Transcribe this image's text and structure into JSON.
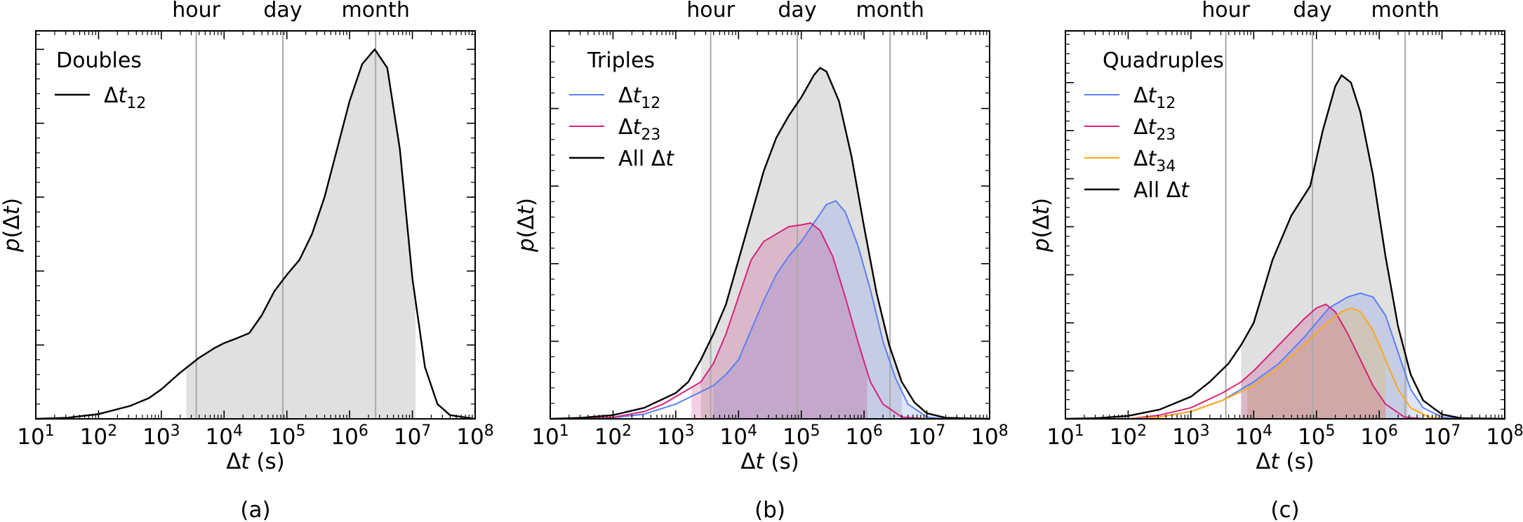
{
  "chart_data": [
    {
      "type": "area",
      "panel_label": "(a)",
      "legend_title": "Doubles",
      "xlabel": "Δt (s)",
      "ylabel": "p(Δt)",
      "x_scale": "log",
      "xlim_log10": [
        1,
        8
      ],
      "ylim": [
        0,
        1.05
      ],
      "x_ticks": [
        {
          "base": "10",
          "exp": "1"
        },
        {
          "base": "10",
          "exp": "2"
        },
        {
          "base": "10",
          "exp": "3"
        },
        {
          "base": "10",
          "exp": "4"
        },
        {
          "base": "10",
          "exp": "5"
        },
        {
          "base": "10",
          "exp": "6"
        },
        {
          "base": "10",
          "exp": "7"
        },
        {
          "base": "10",
          "exp": "8"
        }
      ],
      "y_major_ticks": [
        0.2,
        0.4,
        0.6,
        0.8,
        1.0
      ],
      "y_minor_step": 0.04,
      "markers": [
        {
          "label": "hour",
          "log10": 3.556
        },
        {
          "label": "day",
          "log10": 4.936
        },
        {
          "label": "month",
          "log10": 6.414
        }
      ],
      "shade_range_log10": [
        3.4,
        7.05
      ],
      "series": [
        {
          "name": "Δt12",
          "sym": "Δ",
          "var": "t",
          "sub": "12",
          "color": "#000000",
          "is_all": true,
          "points": [
            [
              1.0,
              0
            ],
            [
              1.5,
              0.003
            ],
            [
              2.0,
              0.013
            ],
            [
              2.5,
              0.035
            ],
            [
              2.8,
              0.056
            ],
            [
              3.0,
              0.08
            ],
            [
              3.3,
              0.125
            ],
            [
              3.6,
              0.165
            ],
            [
              3.85,
              0.192
            ],
            [
              4.0,
              0.205
            ],
            [
              4.2,
              0.218
            ],
            [
              4.4,
              0.232
            ],
            [
              4.6,
              0.28
            ],
            [
              4.8,
              0.345
            ],
            [
              5.0,
              0.39
            ],
            [
              5.2,
              0.43
            ],
            [
              5.4,
              0.5
            ],
            [
              5.6,
              0.6
            ],
            [
              5.8,
              0.73
            ],
            [
              6.0,
              0.86
            ],
            [
              6.2,
              0.96
            ],
            [
              6.4,
              1.0
            ],
            [
              6.6,
              0.95
            ],
            [
              6.8,
              0.73
            ],
            [
              7.0,
              0.38
            ],
            [
              7.2,
              0.14
            ],
            [
              7.4,
              0.04
            ],
            [
              7.6,
              0.01
            ],
            [
              8.0,
              0
            ]
          ]
        }
      ]
    },
    {
      "type": "area",
      "panel_label": "(b)",
      "legend_title": "Triples",
      "xlabel": "Δt (s)",
      "ylabel": "p(Δt)",
      "x_scale": "log",
      "xlim_log10": [
        1,
        8
      ],
      "ylim": [
        0,
        1.05
      ],
      "x_ticks": [
        {
          "base": "10",
          "exp": "1"
        },
        {
          "base": "10",
          "exp": "2"
        },
        {
          "base": "10",
          "exp": "3"
        },
        {
          "base": "10",
          "exp": "4"
        },
        {
          "base": "10",
          "exp": "5"
        },
        {
          "base": "10",
          "exp": "6"
        },
        {
          "base": "10",
          "exp": "7"
        },
        {
          "base": "10",
          "exp": "8"
        }
      ],
      "y_major_ticks": [
        0.21,
        0.42,
        0.63,
        0.84
      ],
      "y_minor_step": 0.042,
      "markers": [
        {
          "label": "hour",
          "log10": 3.556
        },
        {
          "label": "day",
          "log10": 4.936
        },
        {
          "label": "month",
          "log10": 6.414
        }
      ],
      "series": [
        {
          "name": "Δt12",
          "sym": "Δ",
          "var": "t",
          "sub": "12",
          "color": "#5b7ff5",
          "fill": "#5b7ff5",
          "fill_opacity": 0.2,
          "shade_range_log10": [
            3.6,
            6.9
          ],
          "points": [
            [
              1.5,
              0
            ],
            [
              2.0,
              0.003
            ],
            [
              2.5,
              0.013
            ],
            [
              3.0,
              0.04
            ],
            [
              3.3,
              0.065
            ],
            [
              3.6,
              0.09
            ],
            [
              3.8,
              0.12
            ],
            [
              4.0,
              0.16
            ],
            [
              4.2,
              0.24
            ],
            [
              4.4,
              0.32
            ],
            [
              4.6,
              0.39
            ],
            [
              4.8,
              0.44
            ],
            [
              5.0,
              0.48
            ],
            [
              5.2,
              0.53
            ],
            [
              5.4,
              0.58
            ],
            [
              5.55,
              0.59
            ],
            [
              5.7,
              0.56
            ],
            [
              5.9,
              0.47
            ],
            [
              6.1,
              0.35
            ],
            [
              6.3,
              0.21
            ],
            [
              6.5,
              0.11
            ],
            [
              6.7,
              0.04
            ],
            [
              7.0,
              0.005
            ],
            [
              7.3,
              0
            ]
          ]
        },
        {
          "name": "Δt23",
          "sym": "Δ",
          "var": "t",
          "sub": "23",
          "color": "#d6247a",
          "fill": "#c2186f",
          "fill_opacity": 0.2,
          "shade_range_log10": [
            3.25,
            6.05
          ],
          "points": [
            [
              1.5,
              0
            ],
            [
              2.0,
              0.004
            ],
            [
              2.5,
              0.02
            ],
            [
              2.8,
              0.04
            ],
            [
              3.0,
              0.06
            ],
            [
              3.2,
              0.08
            ],
            [
              3.4,
              0.1
            ],
            [
              3.6,
              0.15
            ],
            [
              3.8,
              0.23
            ],
            [
              4.0,
              0.33
            ],
            [
              4.2,
              0.43
            ],
            [
              4.4,
              0.48
            ],
            [
              4.6,
              0.5
            ],
            [
              4.8,
              0.52
            ],
            [
              5.0,
              0.525
            ],
            [
              5.15,
              0.53
            ],
            [
              5.3,
              0.51
            ],
            [
              5.5,
              0.44
            ],
            [
              5.7,
              0.33
            ],
            [
              5.9,
              0.21
            ],
            [
              6.1,
              0.1
            ],
            [
              6.3,
              0.04
            ],
            [
              6.6,
              0.005
            ],
            [
              7.0,
              0
            ]
          ]
        },
        {
          "name": "All Δt",
          "prefix": "All ",
          "sym": "Δ",
          "var": "t",
          "sub": "",
          "color": "#000000",
          "is_all": true,
          "shade_range_log10": [
            3.4,
            6.6
          ],
          "points": [
            [
              1.0,
              0
            ],
            [
              1.5,
              0.003
            ],
            [
              2.0,
              0.01
            ],
            [
              2.5,
              0.03
            ],
            [
              3.0,
              0.07
            ],
            [
              3.2,
              0.1
            ],
            [
              3.4,
              0.16
            ],
            [
              3.6,
              0.23
            ],
            [
              3.8,
              0.31
            ],
            [
              4.0,
              0.43
            ],
            [
              4.2,
              0.55
            ],
            [
              4.4,
              0.67
            ],
            [
              4.6,
              0.76
            ],
            [
              4.8,
              0.82
            ],
            [
              5.0,
              0.87
            ],
            [
              5.2,
              0.93
            ],
            [
              5.3,
              0.95
            ],
            [
              5.4,
              0.94
            ],
            [
              5.6,
              0.86
            ],
            [
              5.8,
              0.71
            ],
            [
              6.0,
              0.52
            ],
            [
              6.2,
              0.34
            ],
            [
              6.4,
              0.2
            ],
            [
              6.6,
              0.1
            ],
            [
              6.8,
              0.045
            ],
            [
              7.0,
              0.015
            ],
            [
              7.3,
              0.003
            ],
            [
              8.0,
              0
            ]
          ]
        }
      ]
    },
    {
      "type": "area",
      "panel_label": "(c)",
      "legend_title": "Quadruples",
      "xlabel": "Δt (s)",
      "ylabel": "p(Δt)",
      "x_scale": "log",
      "xlim_log10": [
        1,
        8
      ],
      "ylim": [
        0,
        1.05
      ],
      "x_ticks": [
        {
          "base": "10",
          "exp": "1"
        },
        {
          "base": "10",
          "exp": "2"
        },
        {
          "base": "10",
          "exp": "3"
        },
        {
          "base": "10",
          "exp": "4"
        },
        {
          "base": "10",
          "exp": "5"
        },
        {
          "base": "10",
          "exp": "6"
        },
        {
          "base": "10",
          "exp": "7"
        },
        {
          "base": "10",
          "exp": "8"
        }
      ],
      "y_major_ticks": [
        0.13,
        0.26,
        0.39,
        0.52,
        0.65,
        0.78,
        0.91
      ],
      "y_minor_step": 0.026,
      "markers": [
        {
          "label": "hour",
          "log10": 3.556
        },
        {
          "label": "day",
          "log10": 4.936
        },
        {
          "label": "month",
          "log10": 6.414
        }
      ],
      "series": [
        {
          "name": "Δt12",
          "sym": "Δ",
          "var": "t",
          "sub": "12",
          "color": "#5b7ff5",
          "fill": "#5b7ff5",
          "fill_opacity": 0.2,
          "shade_range_log10": [
            3.9,
            6.7
          ],
          "points": [
            [
              2.0,
              0
            ],
            [
              2.5,
              0.005
            ],
            [
              3.0,
              0.02
            ],
            [
              3.5,
              0.05
            ],
            [
              4.0,
              0.1
            ],
            [
              4.4,
              0.15
            ],
            [
              4.8,
              0.22
            ],
            [
              5.2,
              0.3
            ],
            [
              5.5,
              0.33
            ],
            [
              5.7,
              0.34
            ],
            [
              5.9,
              0.33
            ],
            [
              6.1,
              0.28
            ],
            [
              6.3,
              0.18
            ],
            [
              6.5,
              0.08
            ],
            [
              6.7,
              0.03
            ],
            [
              7.0,
              0.005
            ],
            [
              7.3,
              0
            ]
          ]
        },
        {
          "name": "Δt23",
          "sym": "Δ",
          "var": "t",
          "sub": "23",
          "color": "#d6247a",
          "fill": "#c2186f",
          "fill_opacity": 0.2,
          "shade_range_log10": [
            3.8,
            6.1
          ],
          "points": [
            [
              2.0,
              0
            ],
            [
              2.5,
              0.01
            ],
            [
              3.0,
              0.03
            ],
            [
              3.5,
              0.07
            ],
            [
              3.8,
              0.1
            ],
            [
              4.0,
              0.13
            ],
            [
              4.4,
              0.2
            ],
            [
              4.8,
              0.27
            ],
            [
              5.0,
              0.3
            ],
            [
              5.15,
              0.31
            ],
            [
              5.3,
              0.29
            ],
            [
              5.5,
              0.23
            ],
            [
              5.7,
              0.16
            ],
            [
              5.9,
              0.09
            ],
            [
              6.1,
              0.04
            ],
            [
              6.4,
              0.005
            ],
            [
              6.7,
              0
            ]
          ]
        },
        {
          "name": "Δt34",
          "sym": "Δ",
          "var": "t",
          "sub": "34",
          "color": "#ffa915",
          "fill": "#ffa915",
          "fill_opacity": 0.2,
          "shade_range_log10": [
            3.9,
            6.1
          ],
          "points": [
            [
              2.0,
              0
            ],
            [
              2.5,
              0.005
            ],
            [
              3.0,
              0.02
            ],
            [
              3.5,
              0.05
            ],
            [
              4.0,
              0.09
            ],
            [
              4.4,
              0.14
            ],
            [
              4.8,
              0.2
            ],
            [
              5.1,
              0.25
            ],
            [
              5.4,
              0.29
            ],
            [
              5.55,
              0.3
            ],
            [
              5.7,
              0.29
            ],
            [
              5.9,
              0.24
            ],
            [
              6.1,
              0.16
            ],
            [
              6.3,
              0.08
            ],
            [
              6.5,
              0.03
            ],
            [
              6.8,
              0.004
            ],
            [
              7.1,
              0
            ]
          ]
        },
        {
          "name": "All Δt",
          "prefix": "All ",
          "sym": "Δ",
          "var": "t",
          "sub": "",
          "color": "#000000",
          "is_all": true,
          "shade_range_log10": [
            3.8,
            6.45
          ],
          "points": [
            [
              1.0,
              0
            ],
            [
              1.5,
              0.002
            ],
            [
              2.0,
              0.008
            ],
            [
              2.5,
              0.025
            ],
            [
              3.0,
              0.06
            ],
            [
              3.3,
              0.1
            ],
            [
              3.6,
              0.15
            ],
            [
              3.8,
              0.2
            ],
            [
              4.0,
              0.26
            ],
            [
              4.3,
              0.43
            ],
            [
              4.6,
              0.55
            ],
            [
              4.9,
              0.63
            ],
            [
              5.1,
              0.78
            ],
            [
              5.3,
              0.9
            ],
            [
              5.4,
              0.93
            ],
            [
              5.55,
              0.91
            ],
            [
              5.7,
              0.83
            ],
            [
              5.9,
              0.66
            ],
            [
              6.1,
              0.44
            ],
            [
              6.3,
              0.25
            ],
            [
              6.5,
              0.12
            ],
            [
              6.7,
              0.05
            ],
            [
              7.0,
              0.012
            ],
            [
              7.3,
              0.002
            ],
            [
              8.0,
              0
            ]
          ]
        }
      ]
    }
  ]
}
